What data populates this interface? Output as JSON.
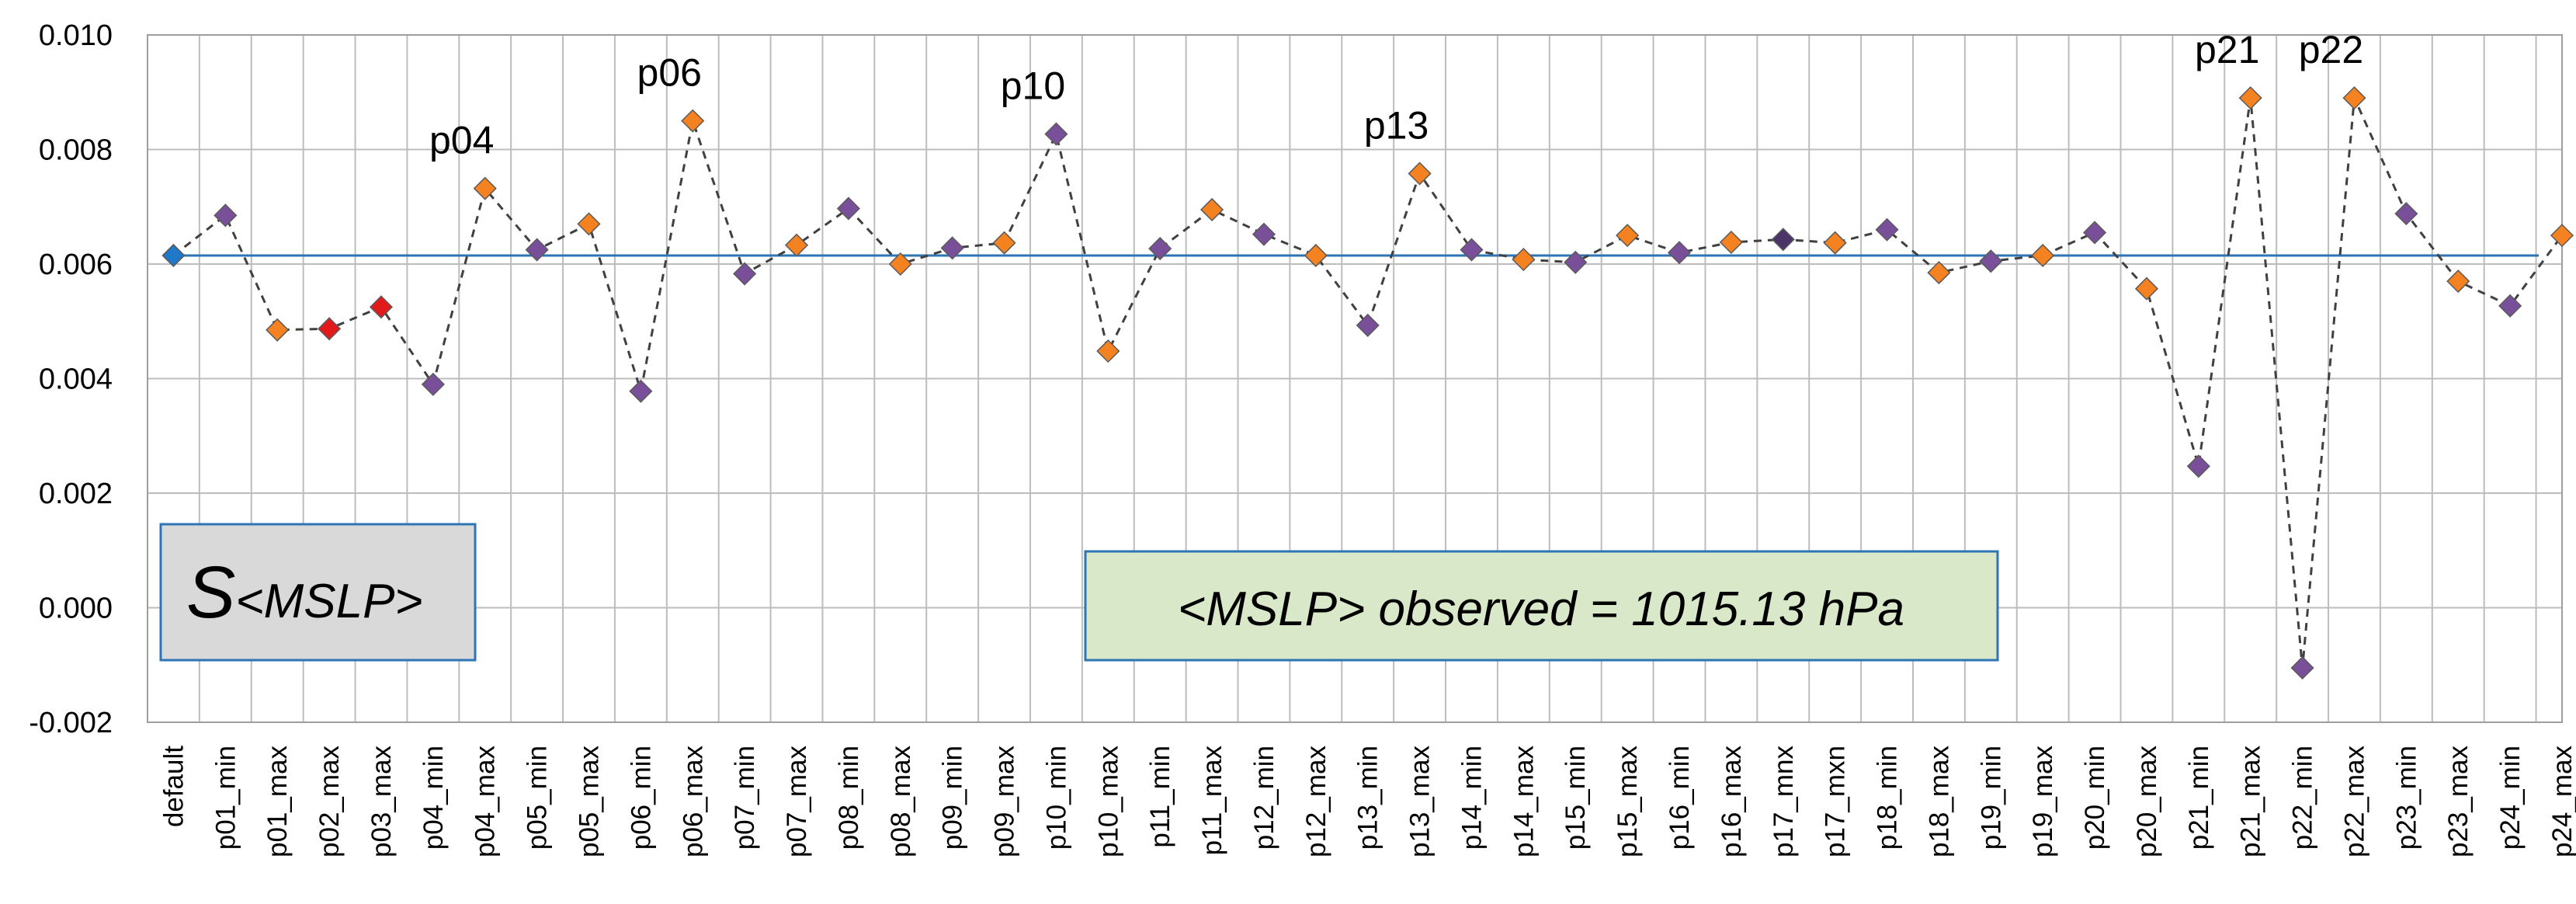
{
  "chart_data": {
    "type": "scatter",
    "title": "",
    "xlabel": "",
    "ylabel": "",
    "ylim": [
      -0.002,
      0.01
    ],
    "yticks": [
      "0.010",
      "0.008",
      "0.006",
      "0.004",
      "0.002",
      "0.000",
      "-0.002"
    ],
    "ytick_values": [
      0.01,
      0.008,
      0.006,
      0.004,
      0.002,
      0.0,
      -0.002
    ],
    "grid": true,
    "reference_line": {
      "value": 0.00615,
      "color": "#2e75b6"
    },
    "categories": [
      "default",
      "p01_min",
      "p01_max",
      "p02_max",
      "p03_max",
      "p04_min",
      "p04_max",
      "p05_min",
      "p05_max",
      "p06_min",
      "p06_max",
      "p07_min",
      "p07_max",
      "p08_min",
      "p08_max",
      "p09_min",
      "p09_max",
      "p10_min",
      "p10_max",
      "p11_min",
      "p11_max",
      "p12_min",
      "p12_max",
      "p13_min",
      "p13_max",
      "p14_min",
      "p14_max",
      "p15_min",
      "p15_max",
      "p16_min",
      "p16_max",
      "p17_mnx",
      "p17_mxn",
      "p18_min",
      "p18_max",
      "p19_min",
      "p19_max",
      "p20_min",
      "p20_max",
      "p21_min",
      "p21_max",
      "p22_min",
      "p22_max",
      "p23_min",
      "p23_max",
      "p24_min",
      "p24_max"
    ],
    "values": [
      0.00615,
      0.00685,
      0.00485,
      0.00487,
      0.00525,
      0.0039,
      0.00732,
      0.00625,
      0.0067,
      0.00378,
      0.0085,
      0.00583,
      0.00633,
      0.00697,
      0.006,
      0.00628,
      0.00637,
      0.00827,
      0.00448,
      0.00627,
      0.00695,
      0.00652,
      0.00615,
      0.00493,
      0.00758,
      0.00625,
      0.00608,
      0.00603,
      0.0065,
      0.0062,
      0.00638,
      0.00643,
      0.00637,
      0.0066,
      0.00585,
      0.00605,
      0.00615,
      0.00655,
      0.00557,
      0.00247,
      0.0089,
      -0.00105,
      0.0089,
      0.00688,
      0.0057,
      0.00527,
      0.0065
    ],
    "colors": [
      "#1f78c8",
      "#7a4f9a",
      "#f58220",
      "#e31a1c",
      "#e31a1c",
      "#7a4f9a",
      "#f58220",
      "#7a4f9a",
      "#f58220",
      "#7a4f9a",
      "#f58220",
      "#7a4f9a",
      "#f58220",
      "#7a4f9a",
      "#f58220",
      "#7a4f9a",
      "#f58220",
      "#7a4f9a",
      "#f58220",
      "#7a4f9a",
      "#f58220",
      "#7a4f9a",
      "#f58220",
      "#7a4f9a",
      "#f58220",
      "#7a4f9a",
      "#f58220",
      "#7a4f9a",
      "#f58220",
      "#7a4f9a",
      "#f58220",
      "#4b3468",
      "#f58220",
      "#7a4f9a",
      "#f58220",
      "#7a4f9a",
      "#f58220",
      "#7a4f9a",
      "#f58220",
      "#7a4f9a",
      "#f58220",
      "#7a4f9a",
      "#f58220",
      "#7a4f9a",
      "#f58220",
      "#7a4f9a",
      "#f58220"
    ],
    "annotations": [
      {
        "text": "p04",
        "category": "p04_max",
        "offset": "above"
      },
      {
        "text": "p06",
        "category": "p06_max",
        "offset": "above"
      },
      {
        "text": "p10",
        "category": "p10_min",
        "offset": "above"
      },
      {
        "text": "p13",
        "category": "p13_max",
        "offset": "above"
      },
      {
        "text": "p21",
        "category": "p21_max",
        "offset": "above"
      },
      {
        "text": "p22",
        "category": "p22_max",
        "offset": "above"
      }
    ],
    "label_box_left": {
      "main": "S",
      "sub": "<MSLP>"
    },
    "label_box_right": "<MSLP> observed = 1015.13 hPa"
  }
}
